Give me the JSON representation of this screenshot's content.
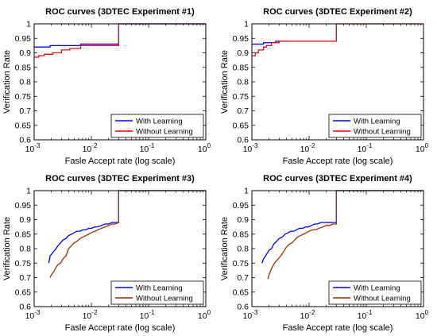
{
  "chart_data": [
    {
      "type": "line",
      "title": "ROC curves (3DTEC Experiment #1)",
      "xlabel": "Fasle Accept rate (log scale)",
      "ylabel": "Verification Rate",
      "xscale": "log",
      "xlim": [
        0.001,
        1
      ],
      "ylim": [
        0.6,
        1
      ],
      "x_ticks": [
        0.001,
        0.01,
        0.1,
        1
      ],
      "x_tick_labels": [
        {
          "base": "10",
          "exp": "-3"
        },
        {
          "base": "10",
          "exp": "-2"
        },
        {
          "base": "10",
          "exp": "-1"
        },
        {
          "base": "10",
          "exp": "0"
        }
      ],
      "y_ticks": [
        "0.6",
        "0.65",
        "0.7",
        "0.75",
        "0.8",
        "0.85",
        "0.9",
        "0.95",
        "1"
      ],
      "legend_position": "bottom-right",
      "series": [
        {
          "name": "With Learning",
          "color": "#0000ff",
          "x": [
            0.001,
            0.0019,
            0.0019,
            0.0065,
            0.0065,
            0.03,
            0.03,
            1
          ],
          "y": [
            0.92,
            0.92,
            0.925,
            0.925,
            0.93,
            0.93,
            1,
            1
          ]
        },
        {
          "name": "Without Learning",
          "color": "#ff0000",
          "x": [
            0.001,
            0.0012,
            0.0012,
            0.0015,
            0.0015,
            0.0021,
            0.0021,
            0.003,
            0.003,
            0.0042,
            0.0042,
            0.0065,
            0.0065,
            0.03,
            0.03,
            1
          ],
          "y": [
            0.885,
            0.885,
            0.89,
            0.89,
            0.895,
            0.895,
            0.9,
            0.9,
            0.91,
            0.91,
            0.915,
            0.915,
            0.925,
            0.925,
            1,
            1
          ]
        }
      ]
    },
    {
      "type": "line",
      "title": "ROC curves (3DTEC Experiment #2)",
      "xlabel": "Fasle Accept rate (log scale)",
      "ylabel": "Verification Rate",
      "xscale": "log",
      "xlim": [
        0.001,
        1
      ],
      "ylim": [
        0.6,
        1
      ],
      "x_ticks": [
        0.001,
        0.01,
        0.1,
        1
      ],
      "x_tick_labels": [
        {
          "base": "10",
          "exp": "-3"
        },
        {
          "base": "10",
          "exp": "-2"
        },
        {
          "base": "10",
          "exp": "-1"
        },
        {
          "base": "10",
          "exp": "0"
        }
      ],
      "y_ticks": [
        "0.6",
        "0.65",
        "0.7",
        "0.75",
        "0.8",
        "0.85",
        "0.9",
        "0.95",
        "1"
      ],
      "legend_position": "bottom-right",
      "series": [
        {
          "name": "With Learning",
          "color": "#0000ff",
          "x": [
            0.001,
            0.0016,
            0.0016,
            0.0026,
            0.0026,
            0.0045
          ],
          "y": [
            0.93,
            0.93,
            0.935,
            0.935,
            0.94,
            0.94
          ]
        },
        {
          "name": "Without Learning",
          "color": "#ff0000",
          "x": [
            0.001,
            0.00115,
            0.00115,
            0.0013,
            0.0013,
            0.0016,
            0.0016,
            0.0018,
            0.0018,
            0.0022,
            0.0022,
            0.003,
            0.003,
            0.03,
            0.03,
            1
          ],
          "y": [
            0.89,
            0.89,
            0.9,
            0.9,
            0.91,
            0.91,
            0.92,
            0.92,
            0.925,
            0.925,
            0.935,
            0.935,
            0.94,
            0.94,
            1,
            1
          ]
        }
      ]
    },
    {
      "type": "line",
      "title": "ROC curves (3DTEC Experiment #3)",
      "xlabel": "Fasle Accept rate (log scale)",
      "ylabel": "Verification Rate",
      "xscale": "log",
      "xlim": [
        0.001,
        1
      ],
      "ylim": [
        0.6,
        1
      ],
      "x_ticks": [
        0.001,
        0.01,
        0.1,
        1
      ],
      "x_tick_labels": [
        {
          "base": "10",
          "exp": "-3"
        },
        {
          "base": "10",
          "exp": "-2"
        },
        {
          "base": "10",
          "exp": "-1"
        },
        {
          "base": "10",
          "exp": "0"
        }
      ],
      "y_ticks": [
        "0.6",
        "0.65",
        "0.7",
        "0.75",
        "0.8",
        "0.85",
        "0.9",
        "0.95",
        "1"
      ],
      "legend_position": "bottom-right",
      "series": [
        {
          "name": "With Learning",
          "color": "#0000ff",
          "x": [
            0.0018,
            0.0019,
            0.002,
            0.0022,
            0.0024,
            0.0026,
            0.0029,
            0.0032,
            0.0036,
            0.004,
            0.0045,
            0.005,
            0.0056,
            0.0063,
            0.0071,
            0.008,
            0.009,
            0.01,
            0.0115,
            0.013,
            0.015,
            0.0175,
            0.02,
            0.023,
            0.026,
            0.03,
            0.03,
            1
          ],
          "y": [
            0.75,
            0.775,
            0.78,
            0.79,
            0.8,
            0.81,
            0.82,
            0.83,
            0.835,
            0.845,
            0.85,
            0.855,
            0.86,
            0.86,
            0.865,
            0.865,
            0.87,
            0.87,
            0.875,
            0.875,
            0.88,
            0.885,
            0.885,
            0.89,
            0.89,
            0.89,
            1,
            1
          ]
        },
        {
          "name": "Without Learning",
          "color": "#993300",
          "x": [
            0.0019,
            0.002,
            0.0022,
            0.0024,
            0.0026,
            0.0029,
            0.0032,
            0.0036,
            0.004,
            0.0045,
            0.005,
            0.0056,
            0.0063,
            0.0071,
            0.008,
            0.009,
            0.01,
            0.0115,
            0.013,
            0.015,
            0.0175,
            0.02,
            0.023,
            0.026,
            0.03,
            0.03,
            1
          ],
          "y": [
            0.7,
            0.71,
            0.72,
            0.735,
            0.745,
            0.75,
            0.765,
            0.775,
            0.8,
            0.81,
            0.82,
            0.825,
            0.835,
            0.84,
            0.845,
            0.85,
            0.855,
            0.86,
            0.865,
            0.87,
            0.875,
            0.88,
            0.885,
            0.885,
            0.89,
            1,
            1
          ]
        }
      ]
    },
    {
      "type": "line",
      "title": "ROC curves (3DTEC Experiment #4)",
      "xlabel": "Fasle Accept rate (log scale)",
      "ylabel": "Verification Rate",
      "xscale": "log",
      "xlim": [
        0.001,
        1
      ],
      "ylim": [
        0.6,
        1
      ],
      "x_ticks": [
        0.001,
        0.01,
        0.1,
        1
      ],
      "x_tick_labels": [
        {
          "base": "10",
          "exp": "-3"
        },
        {
          "base": "10",
          "exp": "-2"
        },
        {
          "base": "10",
          "exp": "-1"
        },
        {
          "base": "10",
          "exp": "0"
        }
      ],
      "y_ticks": [
        "0.6",
        "0.65",
        "0.7",
        "0.75",
        "0.8",
        "0.85",
        "0.9",
        "0.95",
        "1"
      ],
      "legend_position": "bottom-right",
      "series": [
        {
          "name": "With Learning",
          "color": "#0000ff",
          "x": [
            0.0015,
            0.0016,
            0.0018,
            0.002,
            0.0022,
            0.0024,
            0.0027,
            0.003,
            0.0034,
            0.0038,
            0.0043,
            0.0048,
            0.0054,
            0.006,
            0.0068,
            0.0077,
            0.0087,
            0.0098,
            0.011,
            0.0125,
            0.014,
            0.016,
            0.018,
            0.021,
            0.024,
            0.03,
            0.03,
            1
          ],
          "y": [
            0.75,
            0.765,
            0.78,
            0.795,
            0.8,
            0.815,
            0.825,
            0.835,
            0.84,
            0.85,
            0.855,
            0.86,
            0.86,
            0.865,
            0.87,
            0.87,
            0.875,
            0.875,
            0.88,
            0.885,
            0.885,
            0.89,
            0.89,
            0.89,
            0.89,
            0.89,
            1,
            1
          ]
        },
        {
          "name": "Without Learning",
          "color": "#993300",
          "x": [
            0.0019,
            0.002,
            0.0022,
            0.0024,
            0.0026,
            0.0029,
            0.0032,
            0.0036,
            0.004,
            0.0045,
            0.005,
            0.0056,
            0.0063,
            0.0071,
            0.008,
            0.009,
            0.01,
            0.0115,
            0.013,
            0.015,
            0.0175,
            0.02,
            0.023,
            0.026,
            0.03,
            0.03,
            1
          ],
          "y": [
            0.695,
            0.71,
            0.73,
            0.745,
            0.755,
            0.765,
            0.775,
            0.79,
            0.805,
            0.815,
            0.82,
            0.83,
            0.84,
            0.845,
            0.85,
            0.855,
            0.86,
            0.865,
            0.865,
            0.87,
            0.875,
            0.88,
            0.88,
            0.885,
            0.885,
            1,
            1
          ]
        }
      ]
    }
  ]
}
